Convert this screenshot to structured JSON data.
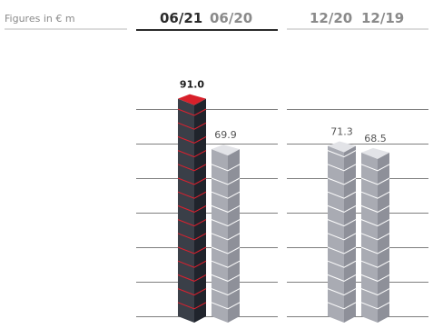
{
  "header": {
    "unit_label": "Figures in € m"
  },
  "chart_data": {
    "type": "bar",
    "unit": "€ m",
    "groups": [
      {
        "periods": [
          "06/21",
          "06/20"
        ],
        "values": [
          91.0,
          69.9
        ],
        "highlight_index": 0
      },
      {
        "periods": [
          "12/20",
          "12/19"
        ],
        "values": [
          71.3,
          68.5
        ],
        "highlight_index": -1
      }
    ],
    "data_labels": [
      "91.0",
      "69.9",
      "71.3",
      "68.5"
    ],
    "ylim": [
      0,
      100
    ],
    "grid": true,
    "bar_style": "stacked cubes",
    "colors": {
      "highlight_front": "#3a3f48",
      "highlight_side": "#20242c",
      "highlight_top": "#d8202a",
      "highlight_seam": "#e0202e",
      "normal_front": "#a9abb3",
      "normal_side": "#8e9099",
      "normal_top": "#e2e3e7",
      "normal_seam": "#ffffff",
      "grid": "#555555",
      "header_bold": "#2b2b2b",
      "header_muted": "#8a8a8a"
    }
  }
}
